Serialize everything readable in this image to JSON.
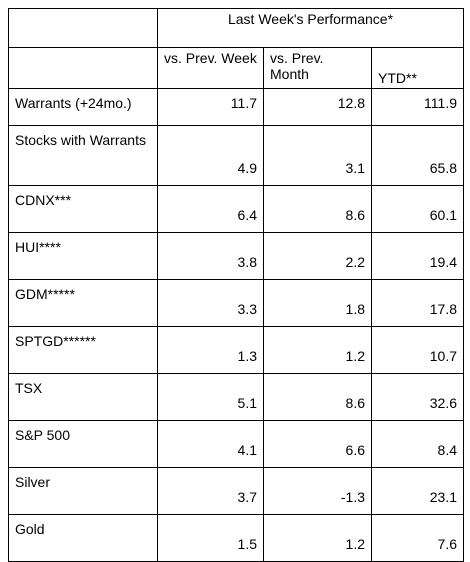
{
  "table": {
    "group_header": "Last Week's Performance*",
    "columns": [
      "vs. Prev. Week",
      "vs. Prev. Month",
      "YTD**"
    ],
    "rows": [
      {
        "label": "Warrants (+24mo.)",
        "week": "11.7",
        "month": "12.8",
        "ytd": "111.9"
      },
      {
        "label": "Stocks with Warrants",
        "week": "4.9",
        "month": "3.1",
        "ytd": "65.8"
      },
      {
        "label": "CDNX***",
        "week": "6.4",
        "month": "8.6",
        "ytd": "60.1"
      },
      {
        "label": "HUI****",
        "week": "3.8",
        "month": "2.2",
        "ytd": "19.4"
      },
      {
        "label": "GDM*****",
        "week": "3.3",
        "month": "1.8",
        "ytd": "17.8"
      },
      {
        "label": "SPTGD******",
        "week": "1.3",
        "month": "1.2",
        "ytd": "10.7"
      },
      {
        "label": "TSX",
        "week": "5.1",
        "month": "8.6",
        "ytd": "32.6"
      },
      {
        "label": "S&P 500",
        "week": "4.1",
        "month": "6.6",
        "ytd": "8.4"
      },
      {
        "label": "Silver",
        "week": "3.7",
        "month": "-1.3",
        "ytd": "23.1"
      },
      {
        "label": "Gold",
        "week": "1.5",
        "month": "1.2",
        "ytd": "7.6"
      }
    ]
  }
}
